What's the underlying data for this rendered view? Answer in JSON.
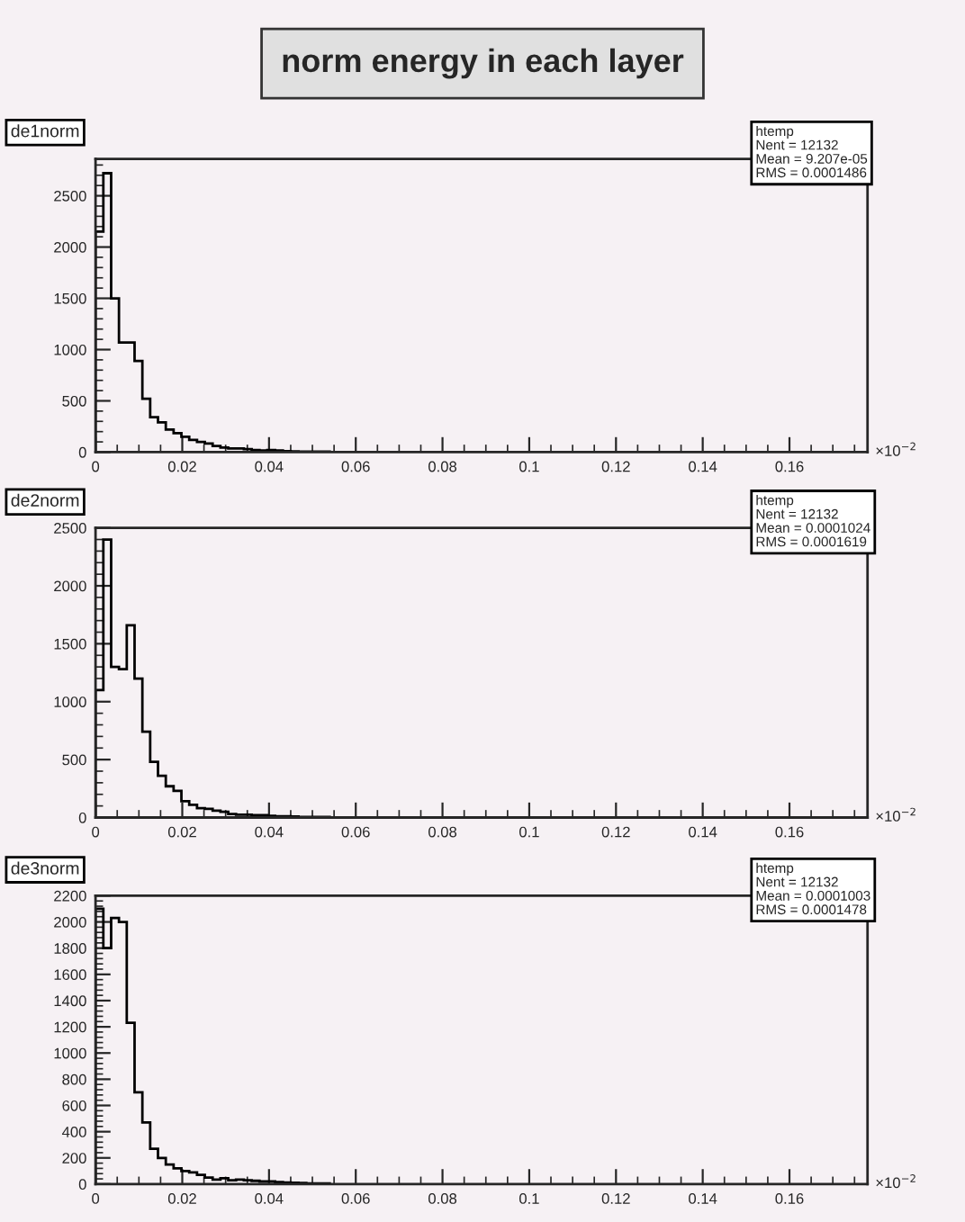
{
  "chart_data": [
    {
      "type": "other",
      "title": "norm energy in each layer"
    },
    {
      "type": "histogram",
      "title": "de1norm",
      "bins": [
        0,
        0.0018,
        0.0036,
        0.0054,
        0.0072,
        0.009,
        0.0108,
        0.0126,
        0.0144,
        0.0162,
        0.018,
        0.0198,
        0.0216,
        0.0234,
        0.0252,
        0.027,
        0.0288,
        0.0306,
        0.0324,
        0.0342,
        0.036,
        0.0378,
        0.0396,
        0.0414,
        0.0432,
        0.045,
        0.0468,
        0.0486,
        0.0504,
        0.0522,
        0.054
      ],
      "values": [
        2150,
        2720,
        1500,
        1070,
        1070,
        890,
        520,
        340,
        290,
        220,
        185,
        150,
        120,
        100,
        85,
        60,
        45,
        35,
        35,
        30,
        20,
        15,
        20,
        15,
        10,
        8,
        5,
        5,
        5,
        5
      ],
      "color": "#000000",
      "xlim": [
        0,
        0.178
      ],
      "xticks": [
        0,
        0.02,
        0.04,
        0.06,
        0.08,
        0.1,
        0.12,
        0.14,
        0.16
      ],
      "ylim": [
        0,
        2860
      ],
      "yticks": [
        0,
        500,
        1000,
        1500,
        2000,
        2500
      ],
      "grid": false,
      "annotations": [
        "htemp\nNent = 12132\nMean = 9.207e-05\nRMS = 0.0001486",
        "×10$^{−2}$"
      ]
    },
    {
      "type": "histogram",
      "title": "de2norm",
      "bins": [
        0,
        0.0018,
        0.0036,
        0.0054,
        0.0072,
        0.009,
        0.0108,
        0.0126,
        0.0144,
        0.0162,
        0.018,
        0.0198,
        0.0216,
        0.0234,
        0.0252,
        0.027,
        0.0288,
        0.0306,
        0.0324,
        0.0342,
        0.036,
        0.0378,
        0.0396,
        0.0414,
        0.0432,
        0.045,
        0.0468,
        0.0486,
        0.0504,
        0.0522,
        0.054
      ],
      "values": [
        1100,
        2400,
        1300,
        1280,
        1660,
        1200,
        740,
        480,
        360,
        270,
        230,
        140,
        110,
        80,
        75,
        60,
        50,
        30,
        25,
        25,
        20,
        20,
        15,
        10,
        10,
        8,
        5,
        5,
        5,
        5
      ],
      "color": "#000000",
      "xlim": [
        0,
        0.178
      ],
      "xticks": [
        0,
        0.02,
        0.04,
        0.06,
        0.08,
        0.1,
        0.12,
        0.14,
        0.16
      ],
      "ylim": [
        0,
        2500
      ],
      "yticks": [
        0,
        500,
        1000,
        1500,
        2000,
        2500
      ],
      "grid": false,
      "annotations": [
        "htemp\nNent = 12132\nMean = 0.0001024\nRMS = 0.0001619",
        "×10$^{−2}$"
      ]
    },
    {
      "type": "histogram",
      "title": "de3norm",
      "bins": [
        0,
        0.0018,
        0.0036,
        0.0054,
        0.0072,
        0.009,
        0.0108,
        0.0126,
        0.0144,
        0.0162,
        0.018,
        0.0198,
        0.0216,
        0.0234,
        0.0252,
        0.027,
        0.0288,
        0.0306,
        0.0324,
        0.0342,
        0.036,
        0.0378,
        0.0396,
        0.0414,
        0.0432,
        0.045,
        0.0468,
        0.0486,
        0.0504,
        0.0522,
        0.054
      ],
      "values": [
        2100,
        1800,
        2030,
        2000,
        1230,
        700,
        470,
        270,
        200,
        150,
        120,
        100,
        90,
        70,
        50,
        35,
        45,
        30,
        35,
        30,
        25,
        20,
        20,
        15,
        12,
        10,
        8,
        5,
        5,
        5
      ],
      "color": "#000000",
      "xlim": [
        0,
        0.178
      ],
      "xticks": [
        0,
        0.02,
        0.04,
        0.06,
        0.08,
        0.1,
        0.12,
        0.14,
        0.16
      ],
      "ylim": [
        0,
        2200
      ],
      "yticks": [
        0,
        200,
        400,
        600,
        800,
        1000,
        1200,
        1400,
        1600,
        1800,
        2000,
        2200
      ],
      "grid": false,
      "annotations": [
        "htemp\nNent = 12132\nMean = 0.0001003\nRMS = 0.0001478",
        "×10$^{−2}$"
      ]
    }
  ]
}
